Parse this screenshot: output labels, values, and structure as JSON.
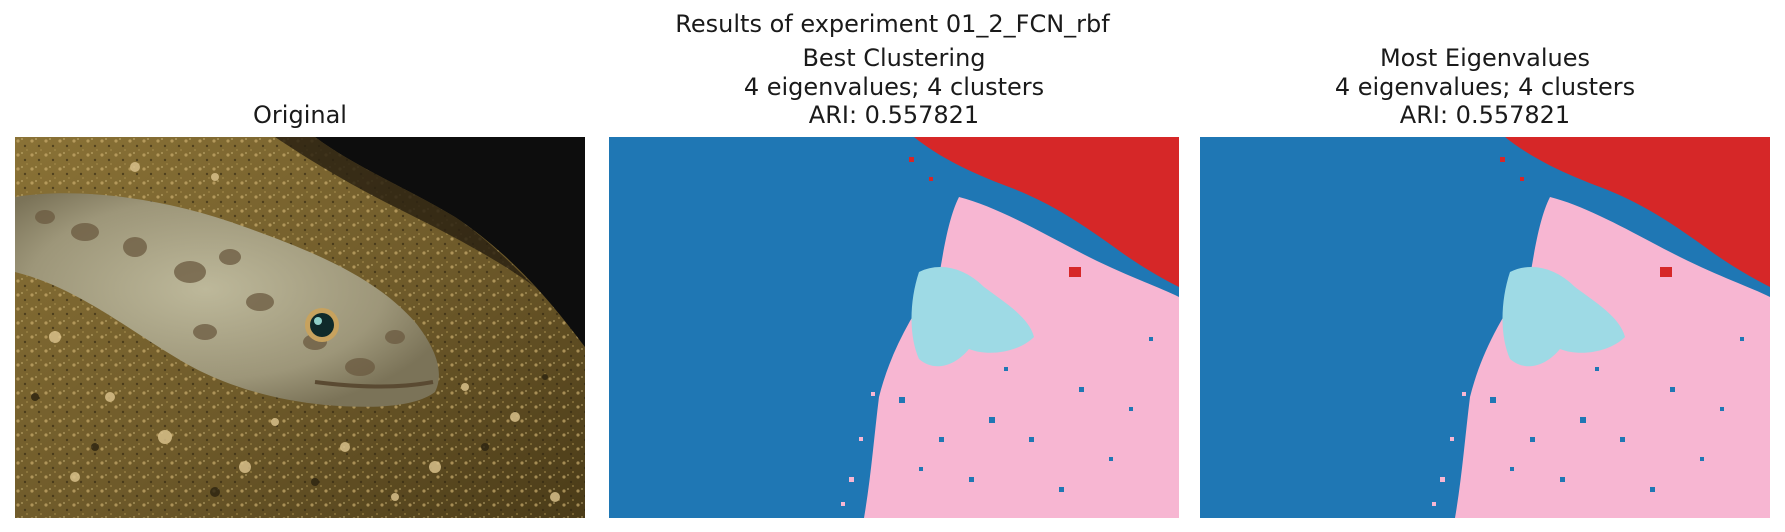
{
  "figure": {
    "suptitle": "Results of experiment 01_2_FCN_rbf"
  },
  "panels": [
    {
      "title": "Original"
    },
    {
      "title_lines": [
        "Best Clustering",
        "4 eigenvalues; 4 clusters",
        "ARI: 0.557821"
      ]
    },
    {
      "title_lines": [
        "Most Eigenvalues",
        "4 eigenvalues; 4 clusters",
        "ARI: 0.557821"
      ]
    }
  ],
  "colors": {
    "cluster_blue": "#1f77b4",
    "cluster_red": "#d62728",
    "cluster_pink": "#f7b6d2",
    "cluster_lightblue": "#9edae5",
    "sand_dark": "#3b2e12",
    "sand_mid": "#7a6230",
    "sand_light": "#b69b5c",
    "background_dark": "#0d0d0d",
    "fish_body": "#a9a589"
  }
}
